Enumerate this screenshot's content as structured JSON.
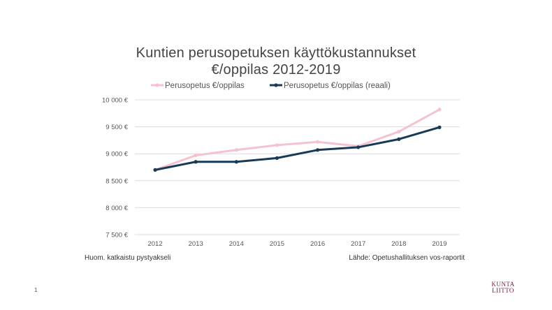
{
  "slide": {
    "number": "1"
  },
  "notes": {
    "left": "Huom. katkaistu pystyakseli",
    "right": "Lähde: Opetushallituksen vos-raportit"
  },
  "logo": {
    "line1": "KUNTA",
    "line2": "LIITTO",
    "color": "#7b1a3c"
  },
  "chart_data": {
    "type": "line",
    "title_line1": "Kuntien perusopetuksen käyttökustannukset",
    "title_line2": "€/oppilas 2012-2019",
    "categories": [
      "2012",
      "2013",
      "2014",
      "2015",
      "2016",
      "2017",
      "2018",
      "2019"
    ],
    "series": [
      {
        "name": "Perusopetus €/oppilas",
        "color": "#f4c2d2",
        "values": [
          8700,
          8970,
          9070,
          9160,
          9220,
          9140,
          9410,
          9820
        ]
      },
      {
        "name": "Perusopetus €/oppilas (reaali)",
        "color": "#173a56",
        "values": [
          8700,
          8850,
          8850,
          8920,
          9070,
          9120,
          9270,
          9490
        ]
      }
    ],
    "ylim": [
      7500,
      10000
    ],
    "yticks": [
      7500,
      8000,
      8500,
      9000,
      9500,
      10000
    ],
    "ytick_labels": [
      "7 500 €",
      "8 000 €",
      "8 500 €",
      "9 000 €",
      "9 500 €",
      "10 000 €"
    ],
    "grid": true,
    "legend_position": "top-center"
  }
}
